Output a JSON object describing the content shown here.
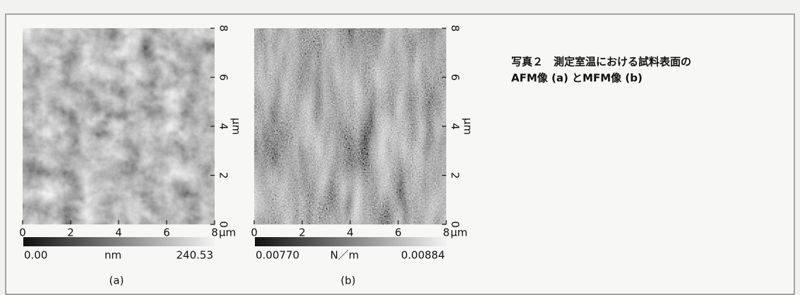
{
  "caption": {
    "line1": "写真２　測定室温における試料表面の",
    "line2": "AFM像 (a) とMFM像 (b)"
  },
  "panels": [
    {
      "label": "(a)",
      "xticks": [
        0,
        2,
        4,
        6,
        8
      ],
      "x_unit": "μm",
      "yticks": [
        0,
        2,
        4,
        6,
        8
      ],
      "y_unit": "μm",
      "colorbar": {
        "min": "0.00",
        "unit": "nm",
        "max": "240.53"
      }
    },
    {
      "label": "(b)",
      "xticks": [
        0,
        2,
        4,
        6,
        8
      ],
      "x_unit": "μm",
      "yticks": [
        0,
        2,
        4,
        6,
        8
      ],
      "y_unit": "μm",
      "colorbar": {
        "min": "0.00770",
        "unit": "N／m",
        "max": "0.00884"
      }
    }
  ]
}
